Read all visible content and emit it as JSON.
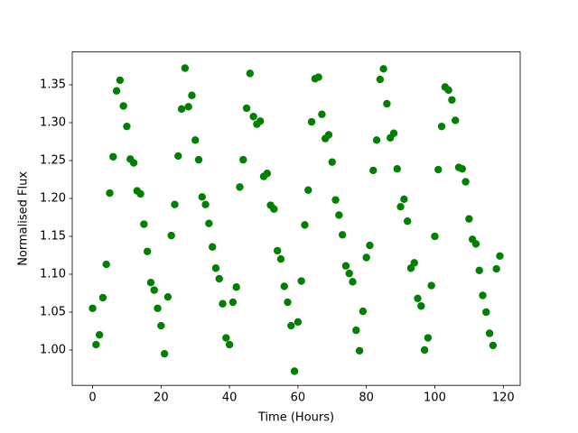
{
  "chart_data": {
    "type": "scatter",
    "xlabel": "Time (Hours)",
    "ylabel": "Normalised Flux",
    "color": "#008000",
    "x": [
      0,
      1,
      2,
      3,
      4,
      5,
      6,
      7,
      8,
      9,
      10,
      11,
      12,
      13,
      14,
      15,
      16,
      17,
      18,
      19,
      20,
      21,
      22,
      23,
      24,
      25,
      26,
      27,
      28,
      29,
      30,
      31,
      32,
      33,
      34,
      35,
      36,
      37,
      38,
      39,
      40,
      41,
      42,
      43,
      44,
      45,
      46,
      47,
      48,
      49,
      50,
      51,
      52,
      53,
      54,
      55,
      56,
      57,
      58,
      59,
      60,
      61,
      62,
      63,
      64,
      65,
      66,
      67,
      68,
      69,
      70,
      71,
      72,
      73,
      74,
      75,
      76,
      77,
      78,
      79,
      80,
      81,
      82,
      83,
      84,
      85,
      86,
      87,
      88,
      89,
      90,
      91,
      92,
      93,
      94,
      95,
      96,
      97,
      98,
      99,
      100,
      101,
      102,
      103,
      104,
      105,
      106,
      107,
      108,
      109,
      110,
      111,
      112,
      113,
      114,
      115,
      116,
      117,
      118,
      119
    ],
    "values": [
      1.055,
      1.007,
      1.02,
      1.069,
      1.113,
      1.207,
      1.255,
      1.342,
      1.356,
      1.322,
      1.295,
      1.252,
      1.247,
      1.21,
      1.206,
      1.166,
      1.13,
      1.089,
      1.079,
      1.055,
      1.032,
      0.995,
      1.07,
      1.151,
      1.192,
      1.256,
      1.318,
      1.372,
      1.321,
      1.336,
      1.277,
      1.251,
      1.202,
      1.192,
      1.167,
      1.136,
      1.108,
      1.094,
      1.061,
      1.016,
      1.007,
      1.063,
      1.083,
      1.215,
      1.251,
      1.319,
      1.365,
      1.308,
      1.298,
      1.302,
      1.229,
      1.233,
      1.191,
      1.186,
      1.131,
      1.12,
      1.084,
      1.063,
      1.032,
      0.972,
      1.037,
      1.091,
      1.165,
      1.211,
      1.301,
      1.358,
      1.36,
      1.311,
      1.279,
      1.284,
      1.248,
      1.198,
      1.178,
      1.152,
      1.111,
      1.101,
      1.09,
      1.026,
      0.999,
      1.051,
      1.122,
      1.138,
      1.237,
      1.277,
      1.357,
      1.371,
      1.325,
      1.28,
      1.286,
      1.239,
      1.189,
      1.199,
      1.17,
      1.108,
      1.115,
      1.068,
      1.058,
      1.0,
      1.016,
      1.085,
      1.15,
      1.238,
      1.295,
      1.347,
      1.343,
      1.33,
      1.303,
      1.241,
      1.239,
      1.222,
      1.173,
      1.146,
      1.14,
      1.105,
      1.072,
      1.05,
      1.022,
      1.006,
      1.107,
      1.124
    ],
    "xlim": [
      -5.95,
      124.95
    ],
    "ylim": [
      0.9533,
      1.3933
    ],
    "xticks": [
      0,
      20,
      40,
      60,
      80,
      100,
      120
    ],
    "yticks": [
      {
        "value": 1.0,
        "label": "1.00"
      },
      {
        "value": 1.05,
        "label": "1.05"
      },
      {
        "value": 1.1,
        "label": "1.10"
      },
      {
        "value": 1.15,
        "label": "1.15"
      },
      {
        "value": 1.2,
        "label": "1.20"
      },
      {
        "value": 1.25,
        "label": "1.25"
      },
      {
        "value": 1.3,
        "label": "1.30"
      },
      {
        "value": 1.35,
        "label": "1.35"
      }
    ]
  }
}
